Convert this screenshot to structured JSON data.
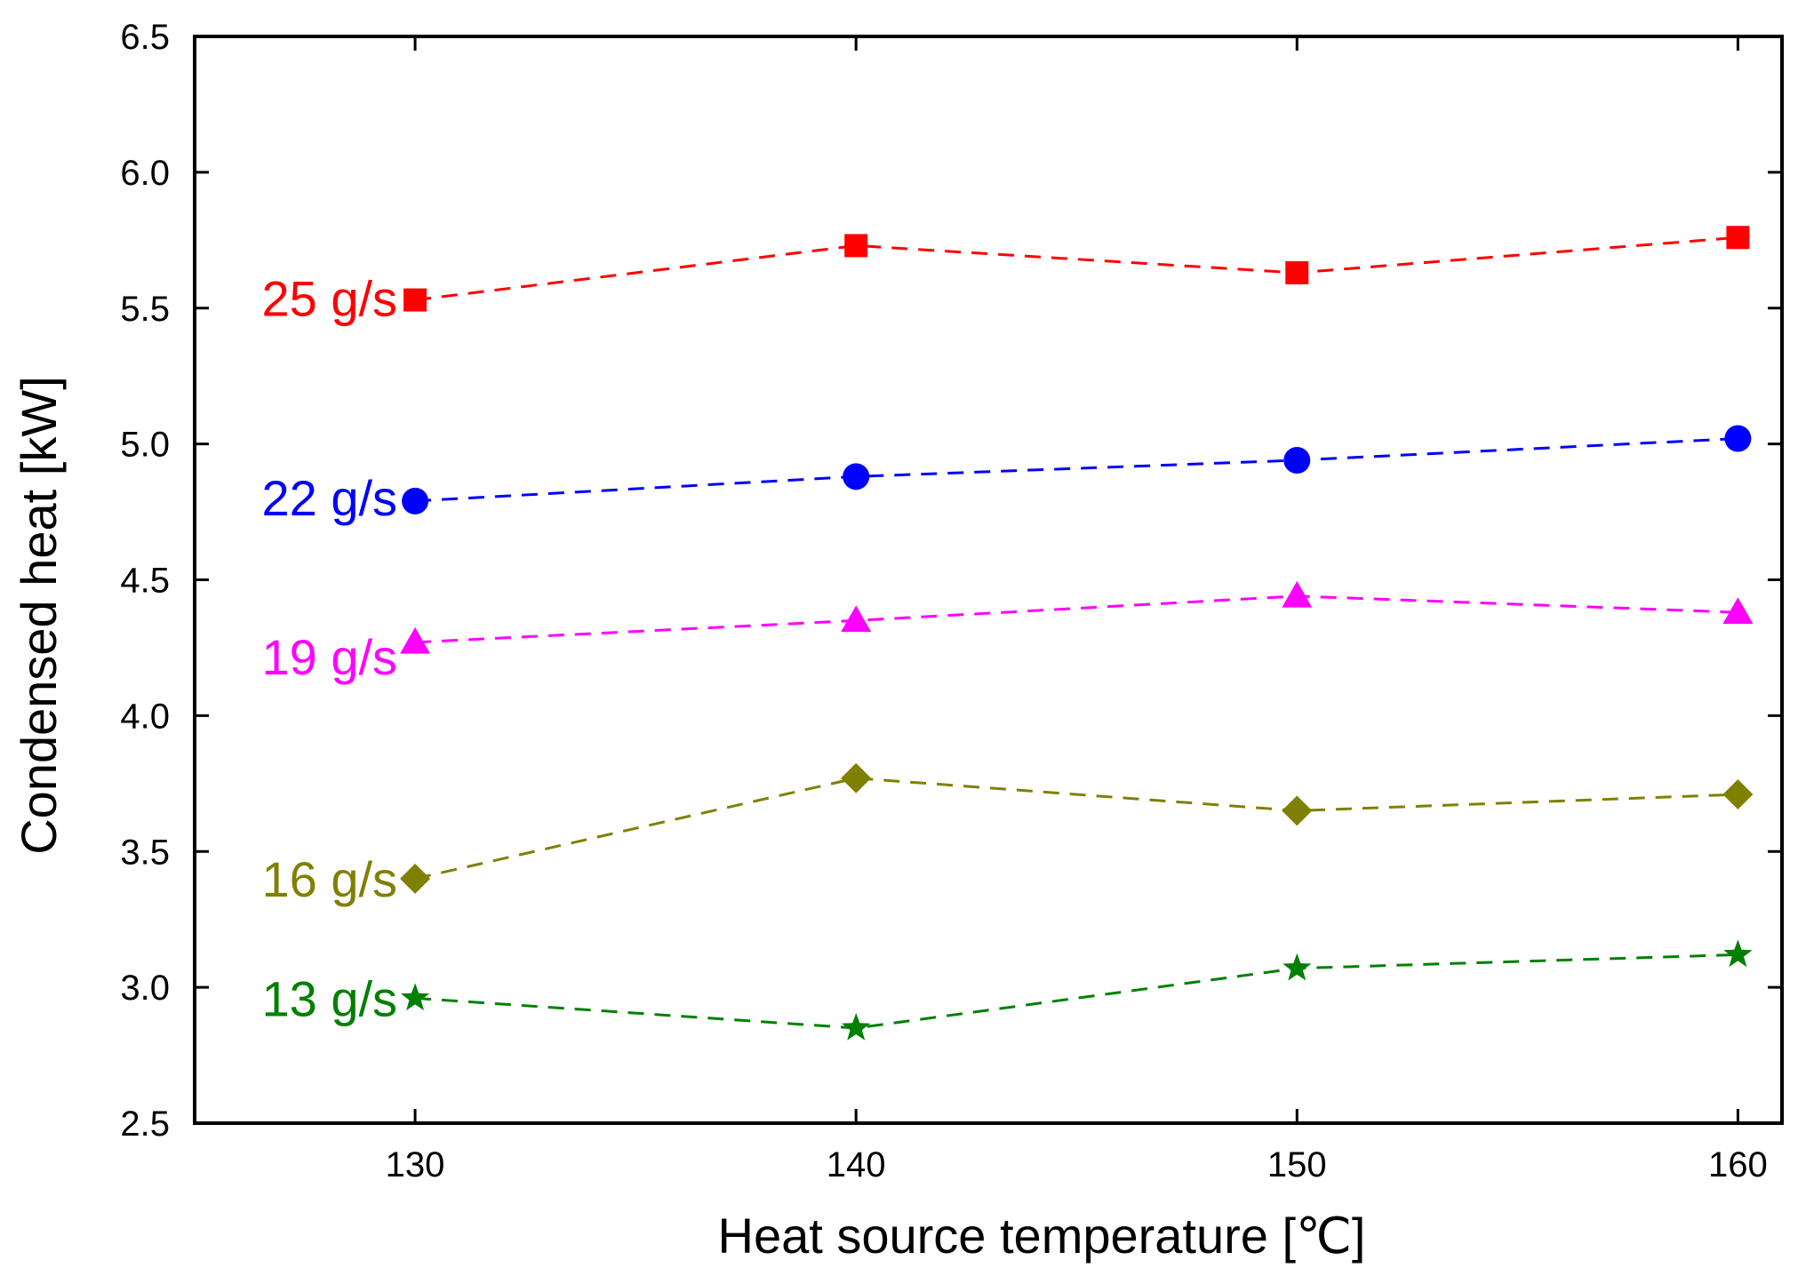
{
  "chart_data": {
    "type": "line",
    "title": "",
    "xlabel": "Heat source temperature [℃]",
    "ylabel": "Condensed heat [kW]",
    "x": [
      130,
      140,
      150,
      160
    ],
    "xlim": [
      125,
      161
    ],
    "ylim": [
      2.5,
      6.5
    ],
    "xticks": [
      "130",
      "140",
      "150",
      "160"
    ],
    "yticks": [
      "2.5",
      "3.0",
      "3.5",
      "4.0",
      "4.5",
      "5.0",
      "5.5",
      "6.0",
      "6.5"
    ],
    "grid": false,
    "legend": "inline labels left of series",
    "series": [
      {
        "name": "25 g/s",
        "values": [
          5.53,
          5.73,
          5.63,
          5.76
        ],
        "color": "#ff0000",
        "marker": "square"
      },
      {
        "name": "22 g/s",
        "values": [
          4.79,
          4.88,
          4.94,
          5.02
        ],
        "color": "#0000ff",
        "marker": "circle"
      },
      {
        "name": "19 g/s",
        "values": [
          4.27,
          4.35,
          4.44,
          4.38
        ],
        "color": "#ff00ff",
        "marker": "triangle"
      },
      {
        "name": "16 g/s",
        "values": [
          3.4,
          3.77,
          3.65,
          3.71
        ],
        "color": "#808000",
        "marker": "diamond"
      },
      {
        "name": "13 g/s",
        "values": [
          2.96,
          2.85,
          3.07,
          3.12
        ],
        "color": "#008000",
        "marker": "star"
      }
    ]
  }
}
